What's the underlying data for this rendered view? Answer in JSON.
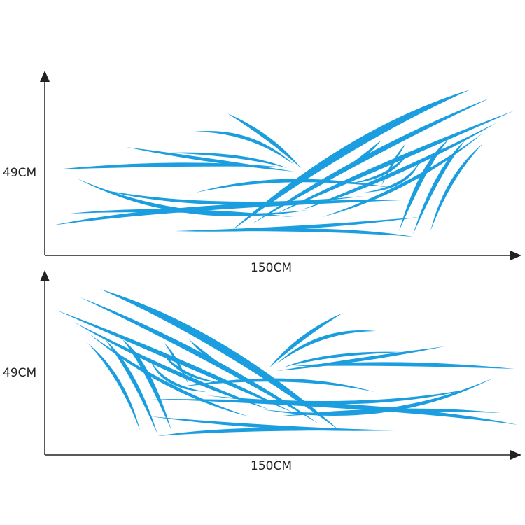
{
  "colors": {
    "decal": "#1a9ee0",
    "axis": "#222222"
  },
  "panels": [
    {
      "height_label": "49CM",
      "width_label": "150CM",
      "orientation": "rising-right"
    },
    {
      "height_label": "49CM",
      "width_label": "150CM",
      "orientation": "rising-left"
    }
  ]
}
